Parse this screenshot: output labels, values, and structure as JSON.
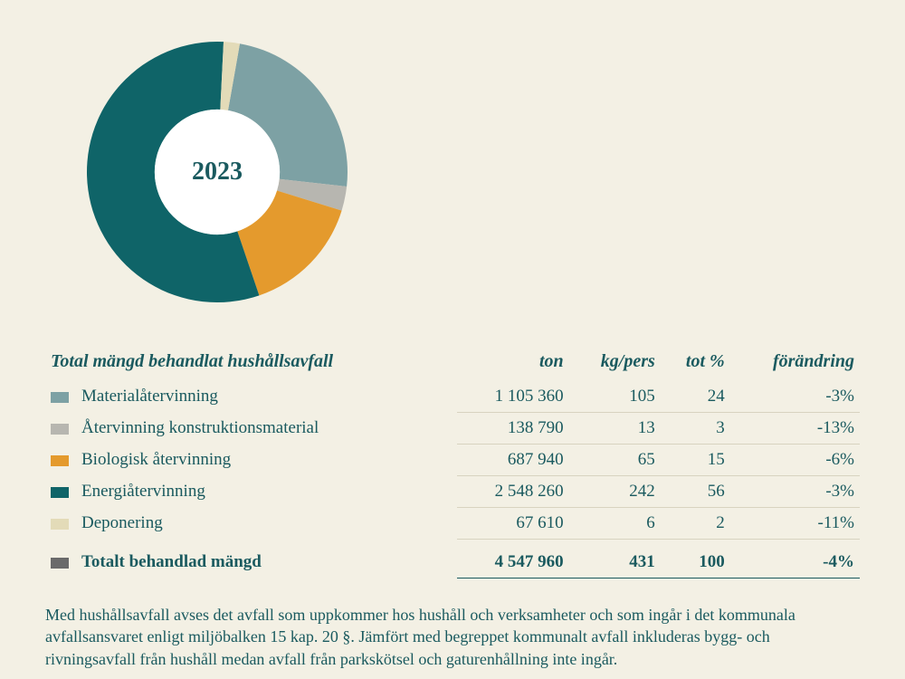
{
  "chart": {
    "year_label": "2023",
    "type": "donut",
    "inner_radius_ratio": 0.48,
    "background_color": "#f3f0e4",
    "center_label_fontsize": 28,
    "center_label_color": "#1a5a5f",
    "slices": [
      {
        "label": "Materialåtervinning",
        "percent": 24,
        "color": "#7da1a4"
      },
      {
        "label": "Återvinning konstruktionsmaterial",
        "percent": 3,
        "color": "#b7b6b0"
      },
      {
        "label": "Biologisk återvinning",
        "percent": 15,
        "color": "#e49a2d"
      },
      {
        "label": "Energiåtervinning",
        "percent": 56,
        "color": "#0f6468"
      },
      {
        "label": "Deponering",
        "percent": 2,
        "color": "#e3dbb8"
      }
    ],
    "start_angle_deg": 10
  },
  "table": {
    "title": "Total mängd behandlat hushållsavfall",
    "columns": {
      "ton": "ton",
      "kgpers": "kg/pers",
      "totpct": "tot %",
      "change": "förändring"
    },
    "rows": [
      {
        "swatch": "#7da1a4",
        "label": "Materialåtervinning",
        "ton": "1 105 360",
        "kgpers": "105",
        "totpct": "24",
        "change": "-3%"
      },
      {
        "swatch": "#b7b6b0",
        "label": "Återvinning konstruktionsmaterial",
        "ton": "138 790",
        "kgpers": "13",
        "totpct": "3",
        "change": "-13%"
      },
      {
        "swatch": "#e49a2d",
        "label": "Biologisk återvinning",
        "ton": "687 940",
        "kgpers": "65",
        "totpct": "15",
        "change": "-6%"
      },
      {
        "swatch": "#0f6468",
        "label": "Energiåtervinning",
        "ton": "2 548 260",
        "kgpers": "242",
        "totpct": "56",
        "change": "-3%"
      },
      {
        "swatch": "#e3dbb8",
        "label": "Deponering",
        "ton": "67 610",
        "kgpers": "6",
        "totpct": "2",
        "change": "-11%"
      }
    ],
    "total": {
      "swatch": "#6a6a6a",
      "label": "Totalt behandlad mängd",
      "ton": "4 547 960",
      "kgpers": "431",
      "totpct": "100",
      "change": "-4%"
    }
  },
  "footnote": "Med hushållsavfall avses det avfall som uppkommer hos hushåll och verksamheter och som ingår i det kommunala avfallsansvaret enligt miljöbalken 15 kap. 20 §. Jämfört med begreppet kommunalt avfall inkluderas bygg- och rivningsavfall från hushåll medan avfall från parkskötsel och gaturenhållning inte ingår.",
  "styling": {
    "body_bg": "#f3f0e4",
    "text_color": "#1a5a5f",
    "row_underline_color": "#d8d3c0",
    "total_underline_color": "#1a5a5f",
    "font_family": "Georgia serif",
    "table_fontsize": 19,
    "header_fontsize": 20,
    "footnote_fontsize": 18
  }
}
